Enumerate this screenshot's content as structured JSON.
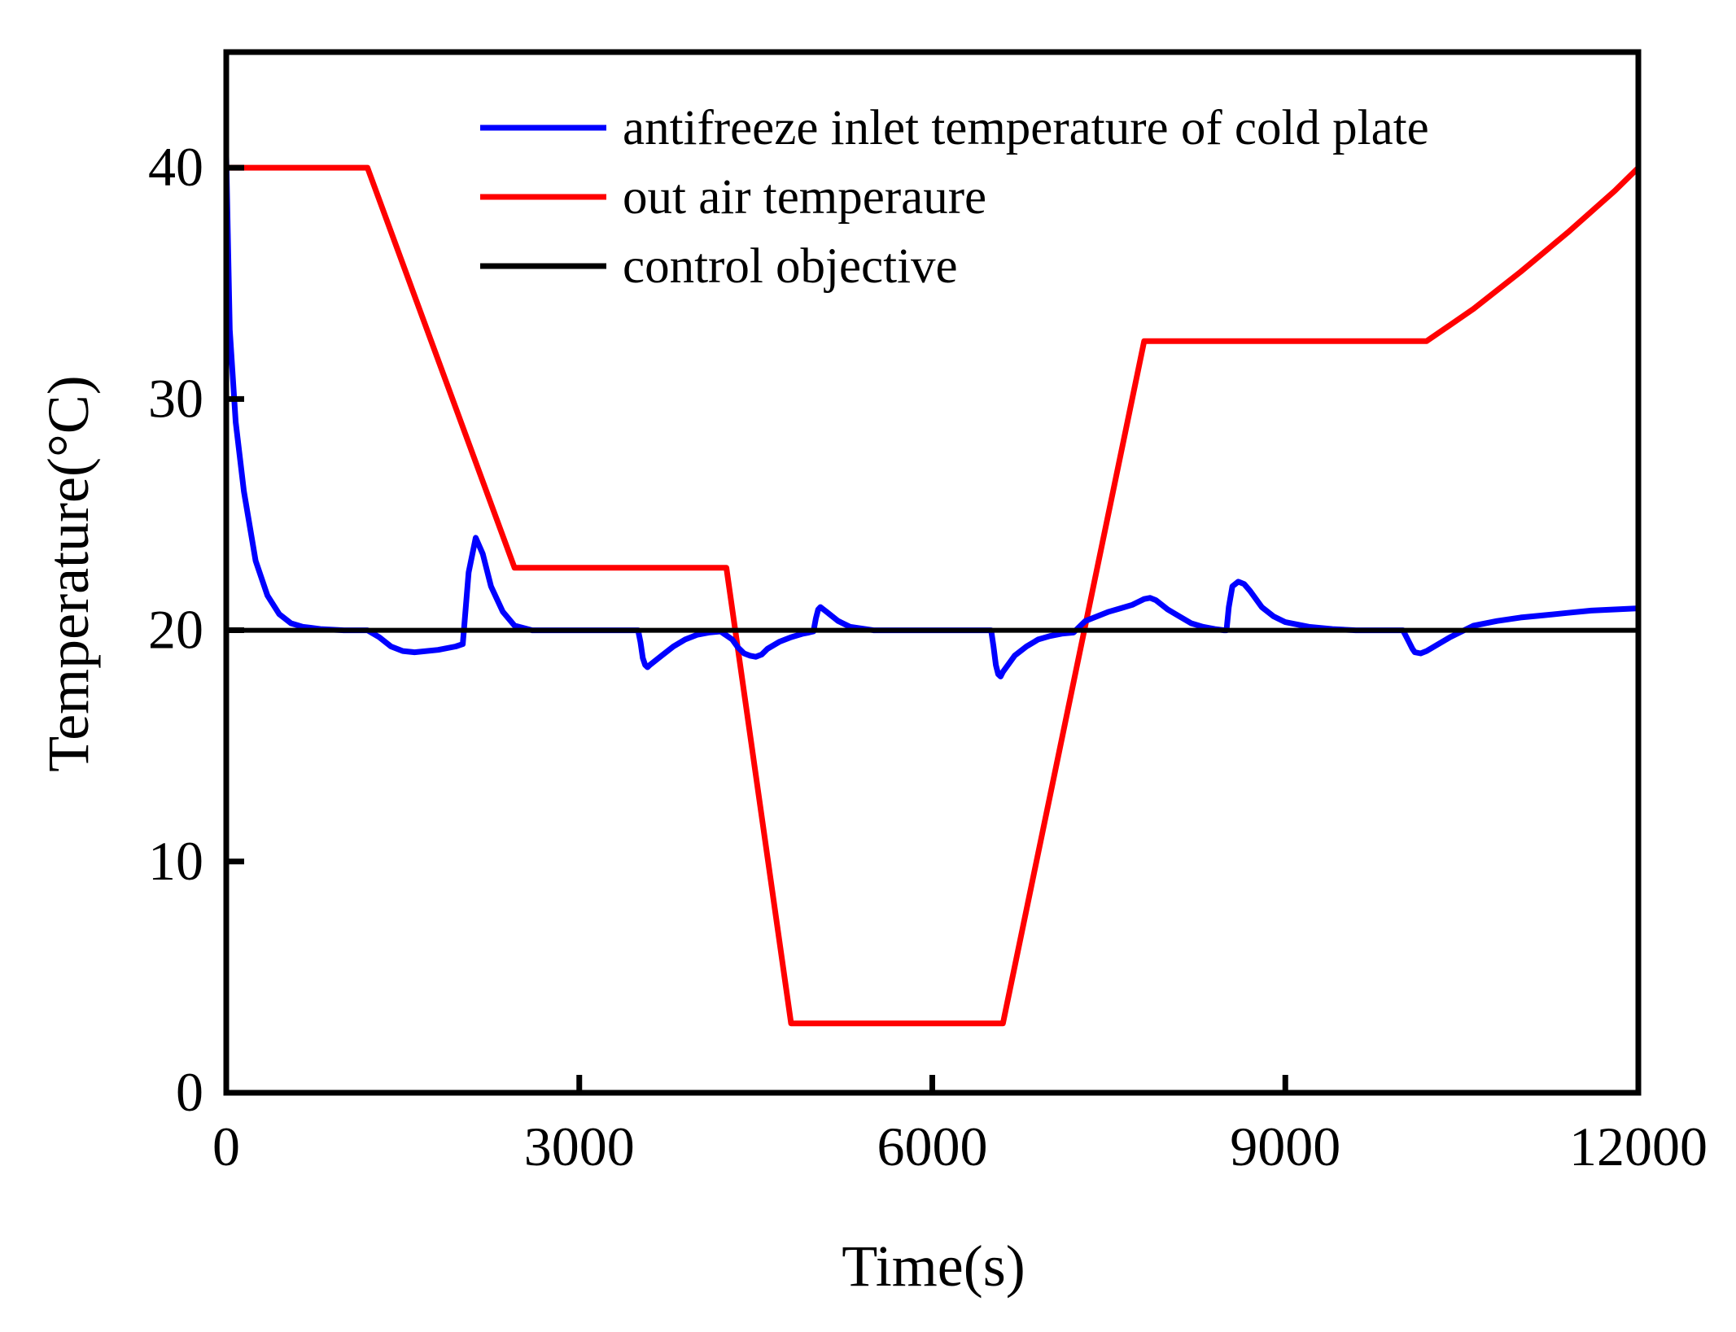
{
  "chart_data": {
    "type": "line",
    "title": "",
    "xlabel": "Time(s)",
    "ylabel": "Temperature(°C)",
    "xlim": [
      0,
      12000
    ],
    "ylim": [
      0,
      45
    ],
    "x_ticks": [
      0,
      3000,
      6000,
      9000,
      12000
    ],
    "x_tick_labels": [
      "0",
      "3000",
      "6000",
      "9000",
      "12000"
    ],
    "y_ticks": [
      0,
      10,
      20,
      30,
      40
    ],
    "y_tick_labels": [
      "0",
      "10",
      "20",
      "30",
      "40"
    ],
    "grid": false,
    "legend_position": "top-right",
    "series": [
      {
        "name": "antifreeze inlet temperature of cold plate",
        "color": "#0000ff",
        "x": [
          0,
          30,
          80,
          150,
          250,
          350,
          450,
          550,
          650,
          800,
          1000,
          1200,
          1300,
          1400,
          1500,
          1600,
          1800,
          1950,
          2010,
          2060,
          2120,
          2180,
          2250,
          2350,
          2450,
          2600,
          3000,
          3500,
          3520,
          3540,
          3560,
          3580,
          3600,
          3700,
          3800,
          3900,
          4000,
          4100,
          4200,
          4300,
          4350,
          4400,
          4450,
          4500,
          4550,
          4600,
          4700,
          4800,
          4900,
          4950,
          4990,
          5010,
          5030,
          5050,
          5100,
          5200,
          5300,
          5500,
          6000,
          6500,
          6520,
          6540,
          6560,
          6580,
          6600,
          6700,
          6800,
          6900,
          7000,
          7100,
          7200,
          7300,
          7400,
          7500,
          7600,
          7700,
          7800,
          7850,
          7900,
          7950,
          8000,
          8100,
          8200,
          8300,
          8400,
          8480,
          8500,
          8520,
          8550,
          8600,
          8650,
          8700,
          8800,
          8900,
          9000,
          9200,
          9400,
          9600,
          9800,
          10000,
          10050,
          10080,
          10100,
          10150,
          10200,
          10300,
          10400,
          10500,
          10600,
          10800,
          11000,
          11200,
          11400,
          11600,
          11800,
          12000
        ],
        "values": [
          40.5,
          33,
          29,
          26,
          23,
          21.5,
          20.7,
          20.3,
          20.15,
          20.05,
          20.0,
          20.0,
          19.7,
          19.3,
          19.1,
          19.05,
          19.15,
          19.3,
          19.4,
          22.5,
          24,
          23.3,
          21.9,
          20.8,
          20.2,
          20.0,
          20.0,
          20.0,
          19.5,
          18.8,
          18.5,
          18.4,
          18.5,
          18.9,
          19.3,
          19.6,
          19.8,
          19.9,
          19.95,
          19.6,
          19.25,
          19.0,
          18.9,
          18.85,
          18.95,
          19.2,
          19.5,
          19.7,
          19.85,
          19.9,
          19.95,
          20.5,
          20.9,
          21.0,
          20.8,
          20.4,
          20.15,
          20.0,
          20.0,
          20.0,
          19.3,
          18.5,
          18.1,
          18.0,
          18.2,
          18.9,
          19.3,
          19.6,
          19.75,
          19.85,
          19.9,
          20.4,
          20.6,
          20.8,
          20.95,
          21.1,
          21.35,
          21.4,
          21.3,
          21.1,
          20.9,
          20.6,
          20.3,
          20.15,
          20.05,
          20.0,
          20.0,
          21.0,
          21.9,
          22.1,
          22.0,
          21.7,
          21.0,
          20.6,
          20.35,
          20.15,
          20.05,
          20.0,
          20.0,
          20.0,
          19.5,
          19.2,
          19.05,
          19.0,
          19.1,
          19.4,
          19.7,
          19.95,
          20.2,
          20.4,
          20.55,
          20.65,
          20.75,
          20.85,
          20.9,
          20.95
        ]
      },
      {
        "name": "out air temperaure",
        "color": "#ff0000",
        "x": [
          0,
          1200,
          2450,
          4250,
          4800,
          6600,
          7800,
          10200,
          10600,
          11000,
          11400,
          11800,
          12000
        ],
        "values": [
          40,
          40,
          22.7,
          22.7,
          3,
          3,
          32.5,
          32.5,
          33.9,
          35.5,
          37.2,
          39.0,
          40.0
        ]
      },
      {
        "name": "control objective",
        "color": "#000000",
        "x": [
          0,
          12000
        ],
        "values": [
          20,
          20
        ]
      }
    ]
  }
}
